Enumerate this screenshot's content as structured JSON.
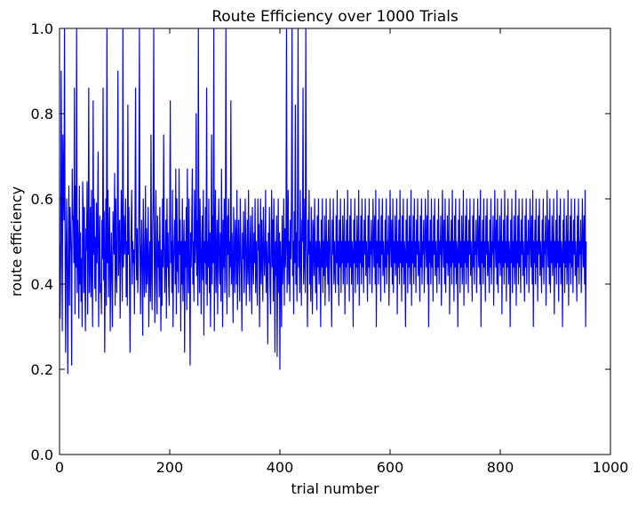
{
  "chart_data": {
    "type": "line",
    "title": "Route Efficiency over 1000 Trials",
    "xlabel": "trial number",
    "ylabel": "route efficiency",
    "xlim": [
      0,
      1000
    ],
    "ylim": [
      0.0,
      1.0
    ],
    "xticks": [
      0,
      200,
      400,
      600,
      800,
      1000
    ],
    "xtick_labels": [
      "0",
      "200",
      "400",
      "600",
      "800",
      "1000"
    ],
    "yticks": [
      0.0,
      0.2,
      0.4,
      0.6,
      0.8,
      1.0
    ],
    "ytick_labels": [
      "0.0",
      "0.2",
      "0.4",
      "0.6",
      "0.8",
      "1.0"
    ],
    "grid": false,
    "colors": {
      "series": "#0000ff",
      "axes": "#000000"
    },
    "series": [
      {
        "x_start": 0,
        "x_step": 1,
        "values": [
          0.5,
          0.32,
          0.45,
          0.9,
          0.6,
          0.29,
          0.75,
          0.62,
          0.55,
          1.0,
          0.52,
          0.24,
          0.47,
          0.6,
          0.41,
          0.19,
          0.5,
          0.63,
          0.35,
          0.58,
          0.53,
          0.47,
          0.21,
          0.67,
          0.55,
          0.56,
          0.45,
          0.86,
          0.33,
          0.63,
          0.44,
          1.0,
          0.38,
          0.55,
          0.48,
          0.32,
          0.63,
          0.4,
          0.52,
          0.36,
          0.46,
          0.3,
          0.64,
          0.57,
          0.38,
          0.58,
          0.42,
          0.29,
          0.53,
          0.48,
          0.64,
          0.33,
          0.48,
          0.86,
          0.38,
          0.45,
          0.58,
          0.37,
          0.62,
          0.44,
          0.3,
          0.83,
          0.47,
          0.6,
          0.39,
          0.51,
          0.36,
          0.59,
          0.45,
          0.52,
          0.71,
          0.3,
          0.44,
          0.56,
          0.38,
          0.4,
          0.33,
          0.55,
          0.46,
          0.86,
          0.41,
          0.57,
          0.24,
          0.44,
          0.6,
          0.35,
          1.0,
          0.45,
          0.62,
          0.37,
          0.5,
          0.58,
          0.29,
          0.44,
          0.52,
          0.4,
          0.3,
          0.57,
          0.5,
          0.47,
          0.66,
          0.35,
          0.6,
          0.44,
          0.38,
          0.57,
          0.9,
          0.42,
          0.5,
          0.55,
          0.32,
          0.45,
          0.62,
          0.5,
          0.36,
          1.0,
          0.44,
          0.56,
          0.47,
          0.52,
          0.6,
          0.37,
          0.5,
          0.35,
          0.82,
          0.47,
          0.58,
          0.42,
          0.24,
          0.45,
          0.53,
          0.62,
          0.4,
          0.5,
          0.45,
          0.48,
          0.33,
          0.56,
          0.86,
          0.48,
          0.41,
          0.53,
          0.38,
          0.44,
          0.6,
          1.0,
          0.5,
          0.33,
          0.47,
          0.55,
          0.42,
          0.28,
          0.6,
          0.5,
          0.37,
          0.45,
          0.63,
          0.38,
          0.53,
          0.4,
          0.45,
          0.58,
          0.3,
          0.44,
          0.5,
          0.36,
          0.75,
          0.45,
          0.34,
          0.52,
          0.6,
          1.0,
          0.45,
          0.31,
          0.5,
          0.62,
          0.4,
          0.33,
          0.56,
          0.44,
          0.5,
          0.37,
          0.58,
          0.45,
          0.29,
          0.48,
          0.35,
          0.6,
          0.44,
          0.75,
          0.5,
          0.38,
          0.46,
          0.55,
          0.32,
          0.6,
          0.44,
          0.52,
          0.4,
          0.35,
          0.56,
          0.83,
          0.45,
          0.5,
          0.38,
          0.62,
          0.3,
          0.45,
          0.5,
          0.55,
          0.4,
          0.67,
          0.33,
          0.6,
          0.43,
          0.5,
          0.38,
          0.67,
          0.47,
          0.55,
          0.29,
          0.5,
          0.4,
          0.6,
          0.36,
          0.47,
          0.55,
          0.24,
          0.5,
          0.44,
          0.58,
          0.34,
          0.67,
          0.47,
          0.38,
          0.6,
          0.43,
          0.21,
          0.52,
          0.44,
          0.55,
          0.67,
          0.4,
          0.5,
          0.36,
          0.62,
          0.45,
          0.5,
          0.8,
          0.42,
          0.55,
          0.35,
          1.0,
          0.46,
          0.38,
          0.6,
          0.5,
          0.33,
          0.47,
          0.56,
          0.41,
          0.62,
          0.28,
          0.5,
          0.45,
          0.58,
          0.4,
          0.86,
          0.35,
          0.5,
          0.44,
          0.6,
          0.38,
          0.52,
          0.3,
          0.47,
          0.75,
          0.4,
          0.56,
          0.45,
          1.0,
          0.29,
          0.5,
          0.62,
          0.38,
          0.46,
          0.55,
          0.33,
          0.5,
          0.6,
          0.44,
          0.4,
          0.52,
          0.36,
          0.67,
          0.48,
          0.3,
          0.55,
          0.44,
          0.6,
          0.38,
          0.5,
          1.0,
          0.42,
          0.33,
          0.56,
          0.47,
          0.6,
          0.37,
          0.5,
          0.44,
          0.83,
          0.4,
          0.52,
          0.45,
          0.31,
          0.58,
          0.46,
          0.38,
          0.55,
          0.5,
          0.4,
          0.62,
          0.34,
          0.47,
          0.55,
          0.44,
          0.36,
          0.6,
          0.5,
          0.42,
          0.29,
          0.52,
          0.46,
          0.57,
          0.38,
          0.44,
          0.6,
          0.5,
          0.35,
          0.47,
          0.55,
          0.4,
          0.62,
          0.45,
          0.36,
          0.5,
          0.56,
          0.42,
          0.33,
          0.58,
          0.47,
          0.4,
          0.52,
          0.45,
          0.6,
          0.38,
          0.5,
          0.44,
          0.35,
          0.6,
          0.48,
          0.54,
          0.3,
          0.45,
          0.6,
          0.4,
          0.55,
          0.46,
          0.36,
          0.58,
          0.5,
          0.42,
          0.47,
          0.62,
          0.38,
          0.5,
          0.44,
          0.26,
          0.52,
          0.45,
          0.58,
          0.4,
          0.33,
          0.5,
          0.62,
          0.44,
          0.55,
          0.36,
          0.6,
          0.47,
          0.24,
          0.5,
          0.42,
          0.56,
          0.23,
          0.45,
          0.6,
          0.38,
          0.52,
          0.2,
          0.5,
          0.44,
          0.3,
          0.56,
          0.4,
          0.47,
          0.6,
          0.35,
          0.53,
          0.44,
          0.5,
          1.0,
          0.38,
          0.45,
          0.62,
          0.4,
          0.5,
          0.36,
          0.55,
          0.46,
          0.6,
          1.0,
          0.42,
          0.5,
          0.33,
          0.57,
          0.45,
          0.82,
          0.4,
          0.52,
          0.36,
          0.6,
          1.0,
          0.44,
          0.5,
          0.38,
          0.62,
          0.47,
          0.35,
          0.55,
          0.5,
          0.86,
          0.4,
          0.45,
          0.6,
          0.38,
          1.0,
          0.5,
          0.44,
          0.3,
          0.55,
          0.47,
          0.62,
          0.4,
          0.5,
          0.36,
          0.58,
          0.45,
          0.33,
          0.55,
          0.5,
          0.42,
          0.6,
          0.46,
          0.38,
          0.5,
          0.34,
          0.56,
          0.44,
          0.6,
          0.4,
          0.5,
          0.47,
          0.3,
          0.55,
          0.44,
          0.6,
          0.38,
          0.5,
          0.42,
          0.56,
          0.35,
          0.47,
          0.6,
          0.44,
          0.5,
          0.4,
          0.55,
          0.36,
          0.45,
          0.6,
          0.5,
          0.42,
          0.3,
          0.55,
          0.47,
          0.6,
          0.4,
          0.5,
          0.44,
          0.38,
          0.56,
          0.45,
          0.62,
          0.4,
          0.5,
          0.35,
          0.55,
          0.44,
          0.6,
          0.38,
          0.5,
          0.45,
          0.56,
          0.4,
          0.47,
          0.6,
          0.33,
          0.5,
          0.44,
          0.55,
          0.4,
          0.62,
          0.45,
          0.5,
          0.36,
          0.56,
          0.44,
          0.6,
          0.4,
          0.5,
          0.47,
          0.3,
          0.55,
          0.45,
          0.6,
          0.38,
          0.5,
          0.44,
          0.56,
          0.4,
          0.47,
          0.62,
          0.35,
          0.5,
          0.45,
          0.56,
          0.4,
          0.6,
          0.44,
          0.5,
          0.38,
          0.55,
          0.47,
          0.6,
          0.42,
          0.5,
          0.45,
          0.36,
          0.56,
          0.44,
          0.6,
          0.4,
          0.5,
          0.47,
          0.55,
          0.38,
          0.45,
          0.6,
          0.5,
          0.44,
          0.56,
          0.4,
          0.62,
          0.3,
          0.5,
          0.45,
          0.55,
          0.4,
          0.6,
          0.44,
          0.5,
          0.36,
          0.56,
          0.47,
          0.6,
          0.42,
          0.5,
          0.45,
          0.38,
          0.55,
          0.44,
          0.6,
          0.4,
          0.5,
          0.47,
          0.56,
          0.35,
          0.45,
          0.62,
          0.5,
          0.44,
          0.55,
          0.4,
          0.6,
          0.38,
          0.5,
          0.45,
          0.56,
          0.42,
          0.47,
          0.6,
          0.33,
          0.5,
          0.44,
          0.55,
          0.4,
          0.62,
          0.45,
          0.5,
          0.36,
          0.56,
          0.44,
          0.6,
          0.4,
          0.5,
          0.47,
          0.3,
          0.55,
          0.45,
          0.6,
          0.38,
          0.5,
          0.44,
          0.56,
          0.4,
          0.47,
          0.62,
          0.35,
          0.5,
          0.45,
          0.56,
          0.4,
          0.6,
          0.44,
          0.5,
          0.38,
          0.55,
          0.47,
          0.6,
          0.42,
          0.5,
          0.45,
          0.36,
          0.56,
          0.44,
          0.6,
          0.4,
          0.5,
          0.47,
          0.55,
          0.38,
          0.45,
          0.6,
          0.5,
          0.44,
          0.56,
          0.4,
          0.62,
          0.3,
          0.5,
          0.45,
          0.55,
          0.4,
          0.6,
          0.44,
          0.5,
          0.36,
          0.56,
          0.47,
          0.6,
          0.42,
          0.5,
          0.45,
          0.38,
          0.55,
          0.44,
          0.6,
          0.4,
          0.5,
          0.47,
          0.56,
          0.35,
          0.45,
          0.62,
          0.5,
          0.44,
          0.55,
          0.4,
          0.6,
          0.38,
          0.5,
          0.45,
          0.56,
          0.42,
          0.47,
          0.6,
          0.33,
          0.5,
          0.44,
          0.55,
          0.4,
          0.62,
          0.45,
          0.5,
          0.36,
          0.56,
          0.44,
          0.6,
          0.4,
          0.5,
          0.47,
          0.3,
          0.55,
          0.45,
          0.6,
          0.38,
          0.5,
          0.44,
          0.56,
          0.4,
          0.47,
          0.62,
          0.35,
          0.5,
          0.45,
          0.56,
          0.4,
          0.6,
          0.44,
          0.5,
          0.38,
          0.55,
          0.47,
          0.6,
          0.42,
          0.5,
          0.45,
          0.36,
          0.56,
          0.44,
          0.6,
          0.4,
          0.5,
          0.47,
          0.55,
          0.38,
          0.45,
          0.6,
          0.5,
          0.44,
          0.56,
          0.4,
          0.62,
          0.3,
          0.5,
          0.45,
          0.55,
          0.4,
          0.6,
          0.44,
          0.5,
          0.36,
          0.56,
          0.47,
          0.6,
          0.42,
          0.5,
          0.45,
          0.38,
          0.55,
          0.44,
          0.6,
          0.4,
          0.5,
          0.47,
          0.56,
          0.35,
          0.45,
          0.62,
          0.5,
          0.44,
          0.55,
          0.4,
          0.6,
          0.38,
          0.5,
          0.45,
          0.56,
          0.42,
          0.47,
          0.6,
          0.33,
          0.5,
          0.44,
          0.55,
          0.4,
          0.62,
          0.45,
          0.5,
          0.36,
          0.56,
          0.44,
          0.6,
          0.4,
          0.5,
          0.47,
          0.3,
          0.55,
          0.45,
          0.6,
          0.38,
          0.5,
          0.44,
          0.56,
          0.4,
          0.47,
          0.62,
          0.35,
          0.5,
          0.45,
          0.56,
          0.4,
          0.6,
          0.44,
          0.5,
          0.38,
          0.55,
          0.47,
          0.6,
          0.42,
          0.5,
          0.45,
          0.36,
          0.56,
          0.44,
          0.6,
          0.4,
          0.5,
          0.47,
          0.55,
          0.38,
          0.45,
          0.6,
          0.5,
          0.44,
          0.56,
          0.4,
          0.62,
          0.3,
          0.5,
          0.45,
          0.55,
          0.4,
          0.6,
          0.44,
          0.5,
          0.36,
          0.56,
          0.47,
          0.6,
          0.42,
          0.5,
          0.45,
          0.38,
          0.55,
          0.44,
          0.6,
          0.4,
          0.5,
          0.47,
          0.56,
          0.35,
          0.45,
          0.62,
          0.5,
          0.44,
          0.55,
          0.4,
          0.6,
          0.38,
          0.5,
          0.45,
          0.56,
          0.42,
          0.47,
          0.6,
          0.33,
          0.5,
          0.44,
          0.55,
          0.4,
          0.62,
          0.45,
          0.5,
          0.36,
          0.56,
          0.44,
          0.6,
          0.4,
          0.5,
          0.47,
          0.3,
          0.55,
          0.45,
          0.6,
          0.38,
          0.5,
          0.44,
          0.56,
          0.4,
          0.47,
          0.62,
          0.35,
          0.5,
          0.45,
          0.56,
          0.4,
          0.6,
          0.44,
          0.5,
          0.38,
          0.55,
          0.47,
          0.6,
          0.42,
          0.5,
          0.45,
          0.36,
          0.56,
          0.44,
          0.6,
          0.4,
          0.5,
          0.47,
          0.55,
          0.38,
          0.45,
          0.6,
          0.5,
          0.44,
          0.56,
          0.4,
          0.62,
          0.3,
          0.5
        ]
      }
    ]
  }
}
